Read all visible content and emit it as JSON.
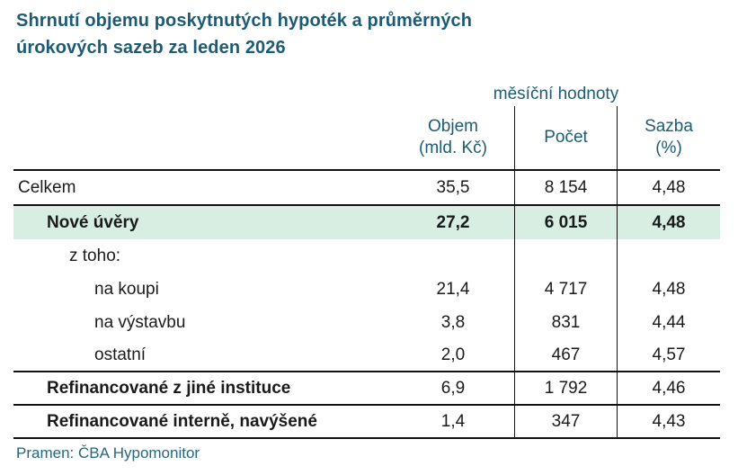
{
  "title": {
    "line1": "Shrnutí objemu poskytnutých hypoték a průměrných",
    "line2": "úrokových sazeb za leden 2026"
  },
  "table": {
    "group_header": "měsíční hodnoty",
    "columns": {
      "objem": {
        "label": "Objem",
        "sublabel": "(mld. Kč)"
      },
      "pocet": {
        "label": "Počet",
        "sublabel": ""
      },
      "sazba": {
        "label": "Sazba",
        "sublabel": "(%)"
      }
    },
    "rows": [
      {
        "label": "Celkem",
        "indent": 0,
        "highlight": false,
        "label_bold": false,
        "values_bold": false,
        "objem": "35,5",
        "pocet": "8 154",
        "sazba": "4,48"
      },
      {
        "label": "Nové úvěry",
        "indent": 1,
        "highlight": true,
        "label_bold": true,
        "values_bold": true,
        "objem": "27,2",
        "pocet": "6 015",
        "sazba": "4,48"
      },
      {
        "label": "z toho:",
        "indent": 2,
        "highlight": false,
        "label_bold": false,
        "values_bold": false,
        "objem": "",
        "pocet": "",
        "sazba": ""
      },
      {
        "label": "na koupi",
        "indent": 3,
        "highlight": false,
        "label_bold": false,
        "values_bold": false,
        "objem": "21,4",
        "pocet": "4 717",
        "sazba": "4,48"
      },
      {
        "label": "na výstavbu",
        "indent": 3,
        "highlight": false,
        "label_bold": false,
        "values_bold": false,
        "objem": "3,8",
        "pocet": "831",
        "sazba": "4,44"
      },
      {
        "label": "ostatní",
        "indent": 3,
        "highlight": false,
        "label_bold": false,
        "values_bold": false,
        "objem": "2,0",
        "pocet": "467",
        "sazba": "4,57"
      },
      {
        "label": "Refinancované z jiné instituce",
        "indent": 1,
        "highlight": false,
        "label_bold": true,
        "values_bold": false,
        "objem": "6,9",
        "pocet": "1 792",
        "sazba": "4,46"
      },
      {
        "label": "Refinancované interně, navýšené",
        "indent": 1,
        "highlight": false,
        "label_bold": true,
        "values_bold": false,
        "objem": "1,4",
        "pocet": "347",
        "sazba": "4,43"
      }
    ]
  },
  "footer": {
    "source": "Pramen: ČBA Hypomonitor"
  },
  "colors": {
    "title_teal": "#1d5b74",
    "footer_teal": "#26657e",
    "highlight_green": "#d8eee3",
    "text": "#1a1a1a",
    "line": "#111111"
  },
  "chart_data": {
    "type": "table",
    "title": "Shrnutí objemu poskytnutých hypoték a průměrných úrokových sazeb za leden 2026",
    "group_header": "měsíční hodnoty",
    "columns": [
      "Objem (mld. Kč)",
      "Počet",
      "Sazba (%)"
    ],
    "rows": [
      {
        "label": "Celkem",
        "objem_mld_kc": 35.5,
        "pocet": 8154,
        "sazba_pct": 4.48
      },
      {
        "label": "Nové úvěry",
        "objem_mld_kc": 27.2,
        "pocet": 6015,
        "sazba_pct": 4.48
      },
      {
        "label": "z toho:",
        "objem_mld_kc": null,
        "pocet": null,
        "sazba_pct": null
      },
      {
        "label": "na koupi",
        "objem_mld_kc": 21.4,
        "pocet": 4717,
        "sazba_pct": 4.48
      },
      {
        "label": "na výstavbu",
        "objem_mld_kc": 3.8,
        "pocet": 831,
        "sazba_pct": 4.44
      },
      {
        "label": "ostatní",
        "objem_mld_kc": 2.0,
        "pocet": 467,
        "sazba_pct": 4.57
      },
      {
        "label": "Refinancované z jiné instituce",
        "objem_mld_kc": 6.9,
        "pocet": 1792,
        "sazba_pct": 4.46
      },
      {
        "label": "Refinancované interně, navýšené",
        "objem_mld_kc": 1.4,
        "pocet": 347,
        "sazba_pct": 4.43
      }
    ],
    "source": "Pramen: ČBA Hypomonitor"
  }
}
